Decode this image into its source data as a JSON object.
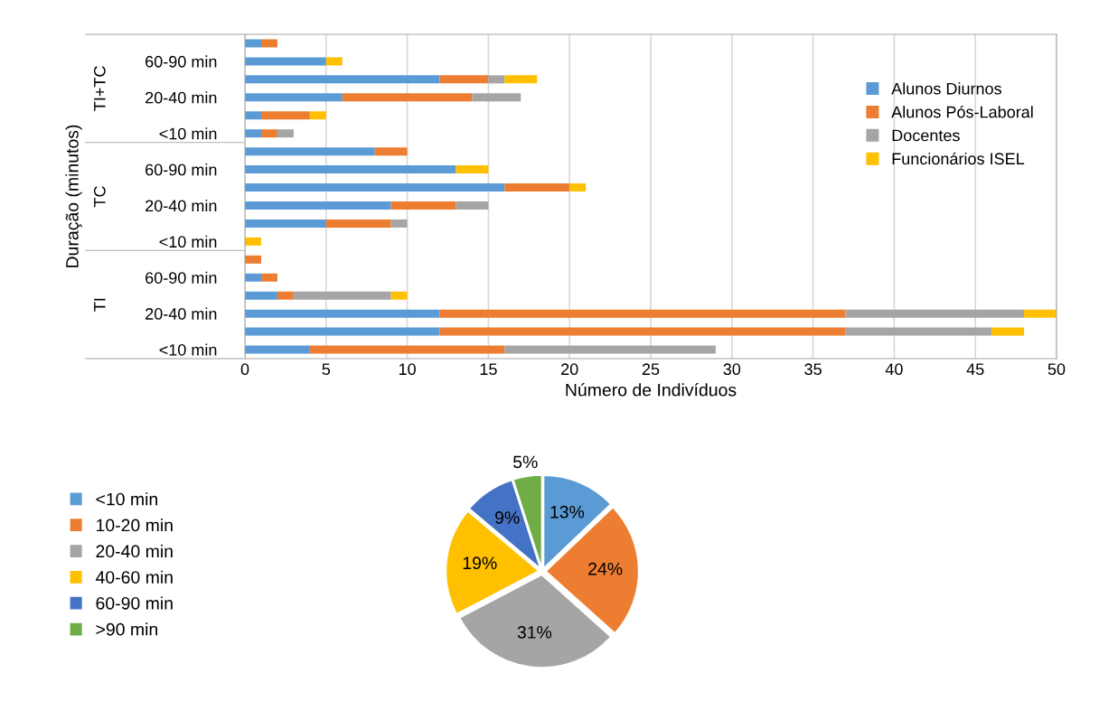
{
  "chart_data": [
    {
      "type": "bar",
      "orientation": "horizontal",
      "stacked": true,
      "ylabel": "Duração (minutos)",
      "xlabel": "Número de Indivíduos",
      "categories": [
        null,
        "60-90 min",
        null,
        "20-40 min",
        null,
        "<10 min",
        null,
        "60-90 min",
        null,
        "20-40 min",
        null,
        "<10 min",
        null,
        "60-90 min",
        null,
        "20-40 min",
        null,
        "<10 min"
      ],
      "annotations": [
        "TI+TC",
        "TC",
        "TI"
      ],
      "series": [
        {
          "name": "Alunos Diurnos",
          "color": "#5b9bd5",
          "values": [
            1,
            5,
            12,
            6,
            1,
            1,
            8,
            13,
            16,
            9,
            5,
            0,
            0,
            1,
            2,
            12,
            12,
            4
          ]
        },
        {
          "name": "Alunos Pós-Laboral",
          "color": "#ed7d31",
          "values": [
            1,
            0,
            3,
            8,
            3,
            1,
            2,
            0,
            4,
            4,
            4,
            0,
            1,
            1,
            1,
            25,
            25,
            12
          ]
        },
        {
          "name": "Docentes",
          "color": "#a5a5a5",
          "values": [
            0,
            0,
            1,
            3,
            0,
            1,
            0,
            0,
            0,
            2,
            1,
            0,
            0,
            0,
            6,
            11,
            9,
            13
          ]
        },
        {
          "name": "Funcionários ISEL",
          "color": "#ffc000",
          "values": [
            0,
            1,
            2,
            0,
            1,
            0,
            0,
            2,
            1,
            0,
            0,
            1,
            0,
            0,
            1,
            2,
            2,
            0
          ]
        }
      ],
      "xlim": [
        0,
        50
      ],
      "xticks": [
        0,
        5,
        10,
        15,
        20,
        25,
        30,
        35,
        40,
        45,
        50
      ],
      "grid": "x",
      "legend": "right"
    },
    {
      "type": "pie",
      "categories": [
        "<10 min",
        "10-20 min",
        "20-40 min",
        "40-60 min",
        "60-90 min",
        ">90 min"
      ],
      "values": [
        13,
        24,
        31,
        19,
        9,
        5
      ],
      "colors": [
        "#5b9bd5",
        "#ed7d31",
        "#a5a5a5",
        "#ffc000",
        "#4472c4",
        "#70ad47"
      ],
      "value_labels": [
        "13%",
        "24%",
        "31%",
        "19%",
        "9%",
        "5%"
      ],
      "legend": "left"
    }
  ]
}
